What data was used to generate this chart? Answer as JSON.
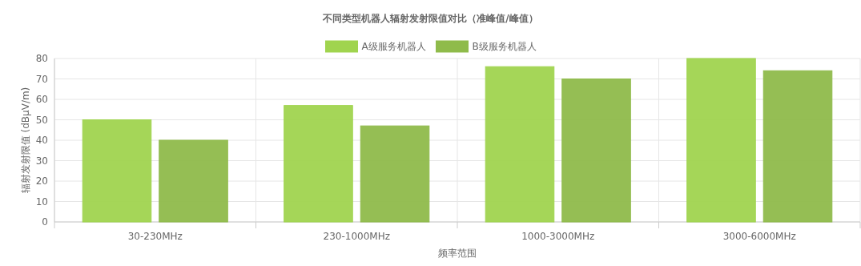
{
  "chart_data": {
    "type": "bar",
    "title": "不同类型机器人辐射发射限值对比（准峰值/峰值）",
    "xlabel": "频率范围",
    "ylabel": "辐射发射限值 (dBμV/m)",
    "categories": [
      "30-230MHz",
      "230-1000MHz",
      "1000-3000MHz",
      "3000-6000MHz"
    ],
    "series": [
      {
        "name": "A级服务机器人",
        "color": "#a0d44f",
        "values": [
          50,
          57,
          76,
          80
        ]
      },
      {
        "name": "B级服务机器人",
        "color": "#8fbb4b",
        "values": [
          40,
          47,
          70,
          74
        ]
      }
    ],
    "ylim": [
      0,
      80
    ],
    "yticks": [
      0,
      10,
      20,
      30,
      40,
      50,
      60,
      70,
      80
    ],
    "grid": true,
    "legend": "top"
  }
}
